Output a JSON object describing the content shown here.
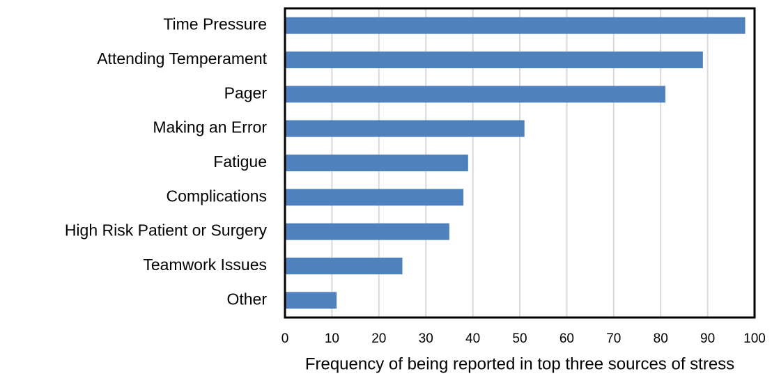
{
  "chart_data": {
    "type": "barh",
    "x_label": "Frequency of being reported in top three sources of stress",
    "categories": [
      "Time Pressure",
      "Attending Temperament",
      "Pager",
      "Making an Error",
      "Fatigue",
      "Complications",
      "High Risk Patient or Surgery",
      "Teamwork Issues",
      "Other"
    ],
    "values": [
      98,
      89,
      81,
      51,
      39,
      38,
      35,
      25,
      11
    ],
    "color": "#4f81bd",
    "xlim": [
      0,
      100
    ],
    "xticks": [
      0,
      10,
      20,
      30,
      40,
      50,
      60,
      70,
      80,
      90,
      100
    ],
    "grid": true
  }
}
